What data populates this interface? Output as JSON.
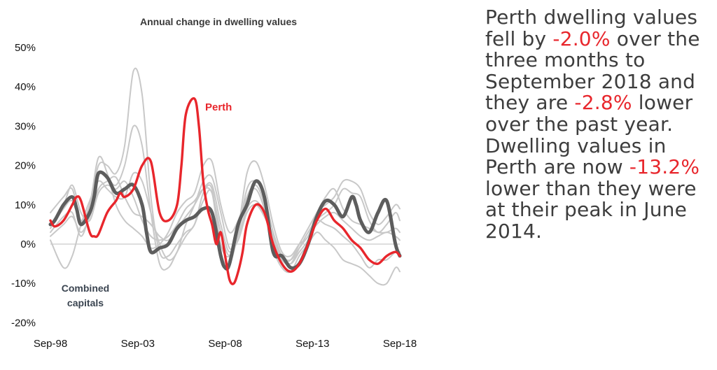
{
  "chart_data": {
    "type": "line",
    "title": "Annual change in dwelling values",
    "xlabel": "",
    "ylabel": "",
    "x_tick_labels": [
      "Sep-98",
      "Sep-03",
      "Sep-08",
      "Sep-13",
      "Sep-18"
    ],
    "x_tick_years": [
      1998.75,
      2003.75,
      2008.75,
      2013.75,
      2018.75
    ],
    "xlim": [
      1998.75,
      2018.75
    ],
    "y_tick_labels": [
      "50%",
      "40%",
      "30%",
      "20%",
      "10%",
      "0%",
      "-10%",
      "-20%"
    ],
    "y_tick_values": [
      50,
      40,
      30,
      20,
      10,
      0,
      -10,
      -20
    ],
    "ylim": [
      -20,
      50
    ],
    "grid": false,
    "annotations": {
      "perth": "Perth",
      "combined_line1": "Combined",
      "combined_line2": "capitals"
    },
    "colors": {
      "perth": "#e8262c",
      "combined": "#5d5d5d",
      "other": "#c8c8c8"
    },
    "perth": {
      "x": [
        1998.75,
        1999.0,
        1999.5,
        2000.0,
        2000.25,
        2000.5,
        2001.0,
        2001.25,
        2001.5,
        2002.0,
        2002.5,
        2002.75,
        2003.0,
        2003.5,
        2004.0,
        2004.5,
        2005.0,
        2005.5,
        2006.0,
        2006.25,
        2006.5,
        2007.0,
        2007.25,
        2007.5,
        2007.75,
        2008.0,
        2008.25,
        2008.5,
        2008.75,
        2009.0,
        2009.25,
        2009.5,
        2009.75,
        2010.0,
        2010.5,
        2011.0,
        2011.5,
        2012.0,
        2012.5,
        2013.0,
        2013.5,
        2014.0,
        2014.5,
        2015.0,
        2015.5,
        2016.0,
        2016.5,
        2017.0,
        2017.5,
        2018.0,
        2018.5,
        2018.75
      ],
      "y": [
        6,
        4.5,
        6,
        10,
        12,
        11,
        3,
        2,
        2.5,
        8,
        11,
        13,
        12,
        14,
        20,
        21,
        8,
        6,
        10,
        20,
        33,
        37,
        30,
        16,
        9,
        5,
        0,
        3,
        -3,
        -9,
        -10,
        -7,
        -2,
        5,
        10,
        8,
        0,
        -5,
        -7,
        -5,
        0,
        6,
        9,
        6,
        4,
        1,
        -1,
        -4,
        -5,
        -3,
        -2,
        -3
      ]
    },
    "combined": {
      "x": [
        1998.75,
        1999.0,
        1999.5,
        2000.0,
        2000.25,
        2000.5,
        2001.0,
        2001.25,
        2001.5,
        2002.0,
        2002.5,
        2003.0,
        2003.5,
        2004.0,
        2004.25,
        2004.5,
        2005.0,
        2005.5,
        2006.0,
        2006.5,
        2007.0,
        2007.5,
        2008.0,
        2008.5,
        2008.75,
        2009.0,
        2009.5,
        2010.0,
        2010.5,
        2011.0,
        2011.5,
        2012.0,
        2012.5,
        2013.0,
        2013.5,
        2014.0,
        2014.5,
        2015.0,
        2015.5,
        2016.0,
        2016.25,
        2016.5,
        2017.0,
        2017.5,
        2018.0,
        2018.5,
        2018.75
      ],
      "y": [
        5,
        6,
        10,
        12,
        9,
        5,
        8,
        12,
        18,
        17,
        13,
        14,
        15,
        10,
        3,
        -2,
        -1,
        0,
        4,
        6,
        7,
        9,
        8,
        -3,
        -6,
        -5,
        5,
        10,
        16,
        12,
        -2,
        -3,
        -6,
        -5,
        0,
        7,
        11,
        10,
        7,
        12,
        10,
        6,
        3,
        8,
        11,
        0,
        -3
      ]
    },
    "other_series": [
      {
        "x": [
          1998.75,
          1999.5,
          2000.0,
          2000.5,
          2001.0,
          2001.5,
          2002.0,
          2002.5,
          2003.0,
          2003.5,
          2004.0,
          2004.5,
          2005.0,
          2005.5,
          2006.0,
          2006.5,
          2007.0,
          2007.5,
          2008.0,
          2008.5,
          2009.0,
          2009.5,
          2010.0,
          2010.5,
          2011.0,
          2011.5,
          2012.0,
          2012.5,
          2013.0,
          2013.5,
          2014.0,
          2014.5,
          2015.0,
          2015.5,
          2016.0,
          2016.5,
          2017.0,
          2017.5,
          2018.0,
          2018.5,
          2018.75
        ],
        "y": [
          4,
          9,
          11,
          6,
          10,
          20,
          20,
          18,
          25,
          44,
          38,
          12,
          -2,
          -3,
          0,
          3,
          5,
          13,
          14,
          0,
          -3,
          4,
          18,
          21,
          15,
          5,
          -2,
          -3,
          0,
          2,
          8,
          10,
          12,
          16,
          16,
          14,
          8,
          5,
          7,
          10,
          9
        ]
      },
      {
        "x": [
          1998.75,
          1999.5,
          2000.0,
          2000.5,
          2001.0,
          2001.5,
          2002.0,
          2002.5,
          2003.0,
          2003.5,
          2004.0,
          2004.5,
          2005.0,
          2005.5,
          2006.0,
          2006.5,
          2007.0,
          2007.5,
          2008.0,
          2008.5,
          2009.0,
          2009.5,
          2010.0,
          2010.5,
          2011.0,
          2011.5,
          2012.0,
          2012.5,
          2013.0,
          2013.5,
          2014.0,
          2014.5,
          2015.0,
          2015.5,
          2016.0,
          2016.5,
          2017.0,
          2017.5,
          2018.0,
          2018.5,
          2018.75
        ],
        "y": [
          3,
          7,
          8,
          2,
          8,
          18,
          17,
          15,
          20,
          30,
          25,
          8,
          -5,
          -6,
          -2,
          2,
          5,
          11,
          13,
          -2,
          -5,
          3,
          14,
          16,
          12,
          3,
          -3,
          -5,
          -2,
          1,
          6,
          8,
          10,
          14,
          13,
          12,
          6,
          3,
          5,
          8,
          6
        ]
      },
      {
        "x": [
          1998.75,
          1999.5,
          2000.0,
          2000.5,
          2001.0,
          2001.5,
          2002.0,
          2002.5,
          2003.0,
          2003.5,
          2004.0,
          2004.5,
          2005.0,
          2005.5,
          2006.0,
          2006.5,
          2007.0,
          2007.5,
          2008.0,
          2008.5,
          2009.0,
          2009.5,
          2010.0,
          2010.5,
          2011.0,
          2011.5,
          2012.0,
          2012.5,
          2013.0,
          2013.5,
          2014.0,
          2014.5,
          2015.0,
          2015.5,
          2016.0,
          2016.5,
          2017.0,
          2017.5,
          2018.0,
          2018.5,
          2018.75
        ],
        "y": [
          8,
          12,
          14,
          6,
          10,
          22,
          18,
          10,
          6,
          4,
          2,
          -1,
          0,
          3,
          8,
          11,
          13,
          20,
          21,
          10,
          3,
          6,
          12,
          14,
          9,
          1,
          -4,
          -5,
          -1,
          3,
          6,
          5,
          4,
          2,
          0,
          -3,
          -6,
          -4,
          -4,
          -2,
          -2
        ]
      },
      {
        "x": [
          1998.75,
          1999.5,
          2000.0,
          2000.5,
          2001.0,
          2001.5,
          2002.0,
          2002.5,
          2003.0,
          2003.5,
          2004.0,
          2004.5,
          2005.0,
          2005.5,
          2006.0,
          2006.5,
          2007.0,
          2007.5,
          2008.0,
          2008.5,
          2009.0,
          2009.5,
          2010.0,
          2010.5,
          2011.0,
          2011.5,
          2012.0,
          2012.5,
          2013.0,
          2013.5,
          2014.0,
          2014.5,
          2015.0,
          2015.5,
          2016.0,
          2016.5,
          2017.0,
          2017.5,
          2018.0,
          2018.5,
          2018.75
        ],
        "y": [
          2,
          5,
          7,
          3,
          7,
          14,
          16,
          17,
          12,
          8,
          7,
          5,
          2,
          1,
          4,
          7,
          10,
          14,
          15,
          5,
          -2,
          3,
          12,
          15,
          10,
          -1,
          -6,
          -7,
          -3,
          0,
          3,
          1,
          -1,
          -4,
          -5,
          -6,
          -8,
          -10,
          -10,
          -6,
          -7
        ]
      },
      {
        "x": [
          1998.75,
          1999.5,
          2000.0,
          2000.5,
          2001.0,
          2001.5,
          2002.0,
          2002.5,
          2003.0,
          2003.5,
          2004.0,
          2004.5,
          2005.0,
          2005.5,
          2006.0,
          2006.5,
          2007.0,
          2007.5,
          2008.0,
          2008.5,
          2009.0,
          2009.5,
          2010.0,
          2010.5,
          2011.0,
          2011.5,
          2012.0,
          2012.5,
          2013.0,
          2013.5,
          2014.0,
          2014.5,
          2015.0,
          2015.5,
          2016.0,
          2016.5,
          2017.0,
          2017.5,
          2018.0,
          2018.5,
          2018.75
        ],
        "y": [
          1,
          -6,
          -3,
          5,
          11,
          16,
          14,
          12,
          12,
          18,
          16,
          8,
          0,
          -4,
          -2,
          5,
          10,
          16,
          17,
          8,
          -1,
          1,
          8,
          10,
          7,
          2,
          -4,
          -4,
          0,
          4,
          8,
          12,
          14,
          9,
          6,
          5,
          4,
          3,
          3,
          4,
          3
        ]
      },
      {
        "x": [
          1998.75,
          1999.5,
          2000.0,
          2000.5,
          2001.0,
          2001.5,
          2002.0,
          2002.5,
          2003.0,
          2003.5,
          2004.0,
          2004.5,
          2005.0,
          2005.5,
          2006.0,
          2006.5,
          2007.0,
          2007.5,
          2008.0,
          2008.5,
          2009.0,
          2009.5,
          2010.0,
          2010.5,
          2011.0,
          2011.5,
          2012.0,
          2012.5,
          2013.0,
          2013.5,
          2014.0,
          2014.5,
          2015.0,
          2015.5,
          2016.0,
          2016.5,
          2017.0,
          2017.5,
          2018.0,
          2018.5,
          2018.75
        ],
        "y": [
          5,
          10,
          15,
          8,
          6,
          13,
          15,
          14,
          16,
          12,
          6,
          2,
          1,
          2,
          5,
          9,
          11,
          14,
          13,
          3,
          -3,
          2,
          9,
          11,
          8,
          2,
          -3,
          -4,
          -1,
          2,
          5,
          7,
          8,
          6,
          4,
          2,
          1,
          2,
          3,
          2,
          1
        ]
      }
    ]
  },
  "narrative": {
    "t1": "Perth dwelling values fell by ",
    "h1": "-2.0%",
    "t2": " over the three months to September 2018 and they are ",
    "h2": "-2.8%",
    "t3": " lower over the past year. Dwelling values in Perth are now ",
    "h3": "-13.2%",
    "t4": " lower than they were at their peak in June 2014."
  }
}
